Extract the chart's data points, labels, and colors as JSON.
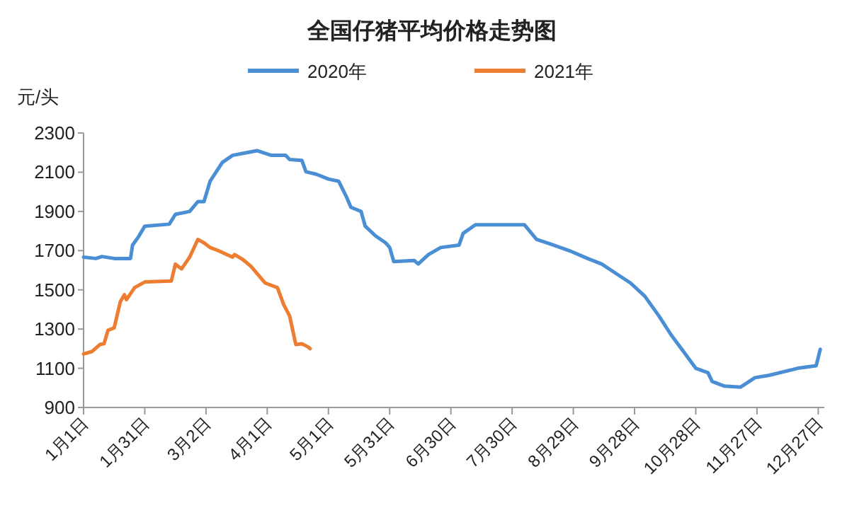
{
  "chart_data": {
    "type": "line",
    "title": "全国仔猪平均价格走势图",
    "ylabel": "元/头",
    "legend": "top",
    "grid": false,
    "xlim": [
      "--01-01",
      "--12-30"
    ],
    "ylim": [
      900,
      2300
    ],
    "yticks": [
      900,
      1100,
      1300,
      1500,
      1700,
      1900,
      2100,
      2300
    ],
    "xticks": [
      {
        "value": "--01-01",
        "label": "1月1日"
      },
      {
        "value": "--01-31",
        "label": "1月31日"
      },
      {
        "value": "--03-02",
        "label": "3月2日"
      },
      {
        "value": "--04-01",
        "label": "4月1日"
      },
      {
        "value": "--05-01",
        "label": "5月1日"
      },
      {
        "value": "--05-31",
        "label": "5月31日"
      },
      {
        "value": "--06-30",
        "label": "6月30日"
      },
      {
        "value": "--07-30",
        "label": "7月30日"
      },
      {
        "value": "--08-29",
        "label": "8月29日"
      },
      {
        "value": "--09-28",
        "label": "9月28日"
      },
      {
        "value": "--10-28",
        "label": "10月28日"
      },
      {
        "value": "--11-27",
        "label": "11月27日"
      },
      {
        "value": "--12-27",
        "label": "12月27日"
      }
    ],
    "series": [
      {
        "name": "2020年",
        "color": "#4a8fd4",
        "x": [
          "--01-01",
          "--01-07",
          "--01-10",
          "--01-16",
          "--01-24",
          "--01-25",
          "--01-28",
          "--01-31",
          "--02-12",
          "--02-15",
          "--02-22",
          "--02-26",
          "--03-01",
          "--03-04",
          "--03-07",
          "--03-10",
          "--03-15",
          "--03-22",
          "--03-27",
          "--04-03",
          "--04-10",
          "--04-12",
          "--04-18",
          "--04-20",
          "--04-25",
          "--05-01",
          "--05-06",
          "--05-10",
          "--05-12",
          "--05-17",
          "--05-19",
          "--05-24",
          "--05-29",
          "--05-31",
          "--06-02",
          "--06-12",
          "--06-14",
          "--06-19",
          "--06-25",
          "--07-04",
          "--07-06",
          "--07-12",
          "--07-25",
          "--08-05",
          "--08-11",
          "--08-18",
          "--08-27",
          "--09-05",
          "--09-12",
          "--09-19",
          "--09-26",
          "--10-03",
          "--10-10",
          "--10-16",
          "--10-22",
          "--10-28",
          "--11-03",
          "--11-05",
          "--11-11",
          "--11-19",
          "--11-26",
          "--12-03",
          "--12-17",
          "--12-26",
          "--12-28"
        ],
        "values": [
          1667,
          1660,
          1670,
          1660,
          1660,
          1728,
          1772,
          1825,
          1835,
          1885,
          1900,
          1950,
          1950,
          2054,
          2102,
          2150,
          2186,
          2200,
          2210,
          2186,
          2186,
          2165,
          2160,
          2102,
          2090,
          2065,
          2054,
          1970,
          1921,
          1900,
          1825,
          1776,
          1740,
          1716,
          1644,
          1650,
          1632,
          1680,
          1716,
          1728,
          1788,
          1832,
          1832,
          1832,
          1757,
          1733,
          1700,
          1660,
          1631,
          1583,
          1535,
          1468,
          1366,
          1269,
          1185,
          1100,
          1077,
          1033,
          1009,
          1004,
          1052,
          1064,
          1100,
          1113,
          1197
        ]
      },
      {
        "name": "2021年",
        "color": "#ed7d31",
        "x": [
          "--01-01",
          "--01-05",
          "--01-09",
          "--01-11",
          "--01-13",
          "--01-16",
          "--01-19",
          "--01-21",
          "--01-22",
          "--01-26",
          "--01-31",
          "--02-13",
          "--02-15",
          "--02-18",
          "--02-22",
          "--02-26",
          "--03-01",
          "--03-04",
          "--03-08",
          "--03-15",
          "--03-16",
          "--03-20",
          "--03-24",
          "--03-31",
          "--04-06",
          "--04-09",
          "--04-12",
          "--04-15",
          "--04-18",
          "--04-21",
          "--04-22"
        ],
        "values": [
          1173,
          1185,
          1221,
          1225,
          1294,
          1306,
          1439,
          1475,
          1450,
          1511,
          1540,
          1545,
          1631,
          1607,
          1667,
          1757,
          1740,
          1716,
          1700,
          1667,
          1680,
          1655,
          1620,
          1535,
          1511,
          1426,
          1366,
          1221,
          1225,
          1209,
          1200
        ]
      }
    ]
  }
}
